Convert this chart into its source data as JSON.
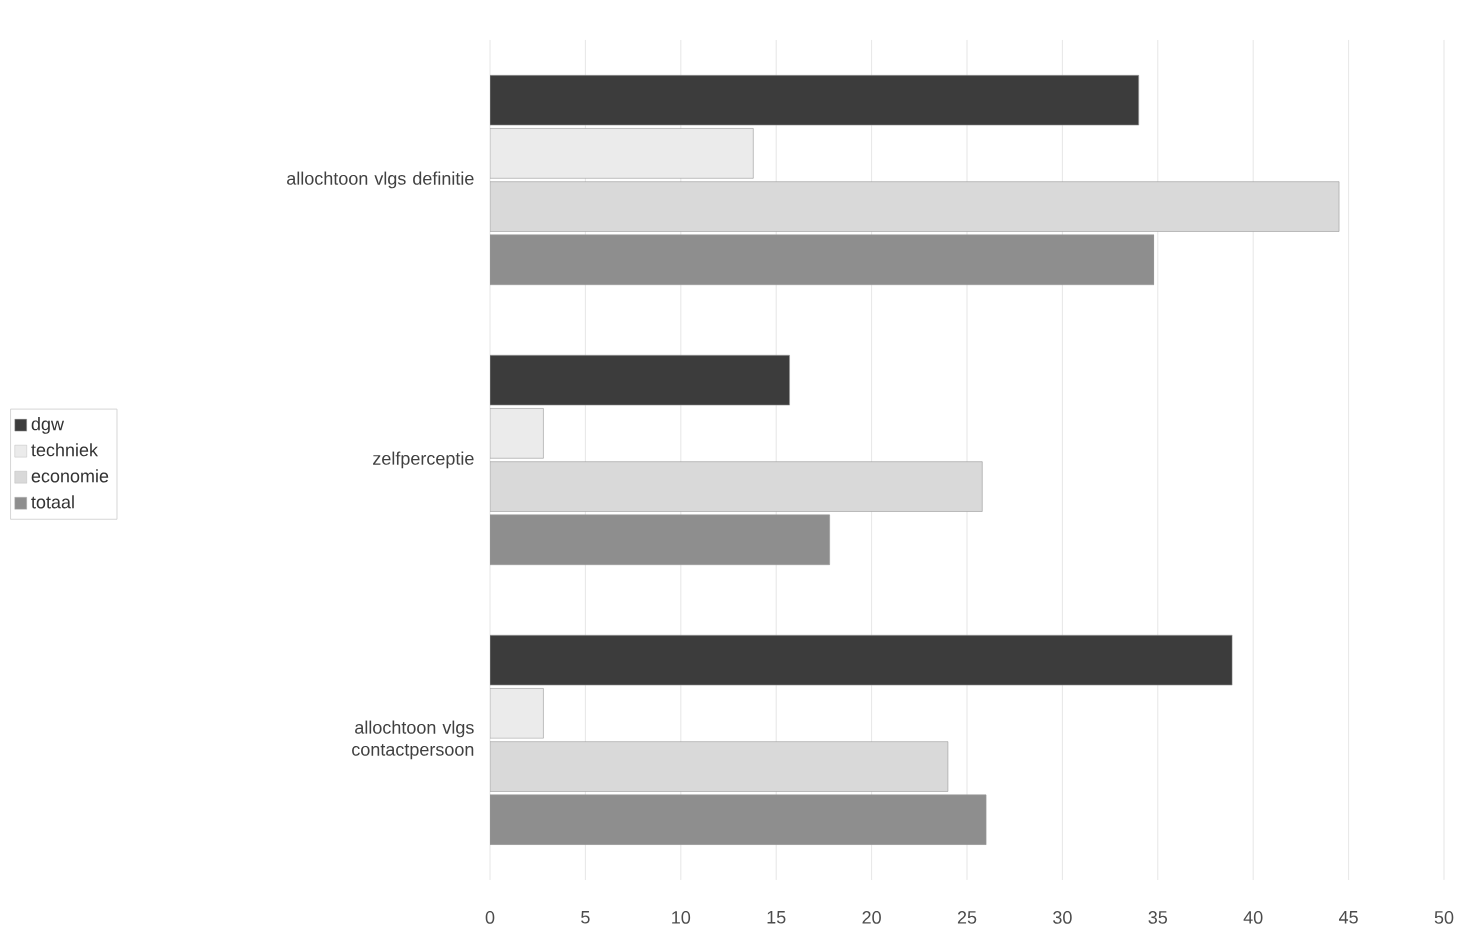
{
  "chart_data": {
    "type": "bar",
    "orientation": "horizontal",
    "categories": [
      "allochtoon vlgs definitie",
      "zelfperceptie",
      "allochtoon vlgs contactpersoon"
    ],
    "series": [
      {
        "name": "dgw",
        "color": "#3c3c3c",
        "values": [
          34,
          15.7,
          38.9
        ]
      },
      {
        "name": "techniek",
        "color": "#ebebeb",
        "values": [
          13.8,
          2.8,
          2.8
        ]
      },
      {
        "name": "economie",
        "color": "#d9d9d9",
        "values": [
          44.5,
          25.8,
          24
        ]
      },
      {
        "name": "totaal",
        "color": "#8e8e8e",
        "values": [
          34.8,
          17.8,
          26
        ]
      }
    ],
    "xlim": [
      0,
      50
    ],
    "xticks": [
      0,
      5,
      10,
      15,
      20,
      25,
      30,
      35,
      40,
      45,
      50
    ],
    "grid": "x",
    "legend": "left"
  }
}
